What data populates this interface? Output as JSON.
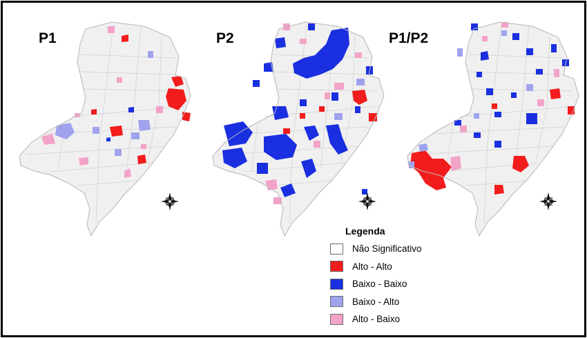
{
  "maps": [
    {
      "title": "P1"
    },
    {
      "title": "P2"
    },
    {
      "title": "P1/P2"
    }
  ],
  "legend": {
    "title": "Legenda",
    "items": [
      {
        "label": "Não Significativo",
        "color": "#ffffff"
      },
      {
        "label": "Alto - Alto",
        "color": "#f21c1c"
      },
      {
        "label": "Baixo - Baixo",
        "color": "#1a2fe0"
      },
      {
        "label": "Baixo - Alto",
        "color": "#9fa3ee"
      },
      {
        "label": "Alto - Baixo",
        "color": "#f3a2c8"
      }
    ]
  },
  "colors": {
    "region_fill": "#f0f0f0",
    "region_border": "#c6c6c6"
  },
  "icons": [
    "compass-rose-icon"
  ]
}
